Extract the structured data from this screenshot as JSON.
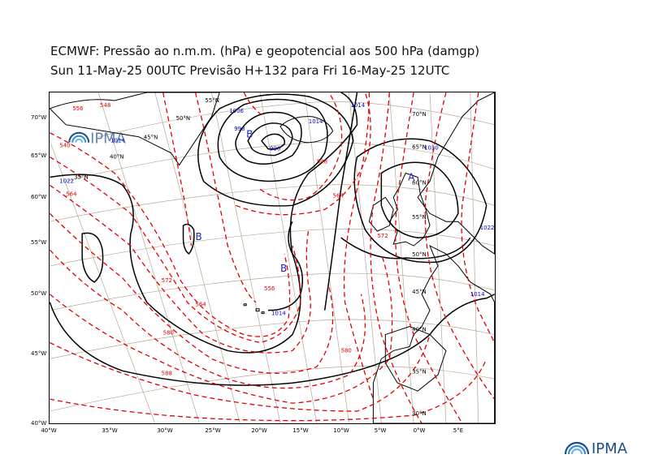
{
  "title": {
    "line1": "ECMWF:  Pressão ao n.m.m. (hPa) e geopotencial aos 500 hPa (damgp)",
    "line2": "Sun 11-May-25 00UTC Previsão H+132 para Fri 16-May-25 12UTC"
  },
  "logo_text": "IPMA",
  "axes": {
    "lon_labels": [
      "40°W",
      "35°W",
      "30°W",
      "25°W",
      "20°W",
      "15°W",
      "10°W",
      "5°W",
      "0°W",
      "5°E"
    ],
    "lat_labels": [
      "70°W",
      "65°W",
      "60°W",
      "55°W",
      "50°W",
      "45°W",
      "40°W"
    ]
  },
  "grid_labels": [
    "55°N",
    "50°N",
    "45°N",
    "40°N",
    "35°N",
    "70°N",
    "65°N",
    "60°N",
    "55°N",
    "50°N",
    "45°N",
    "40°N",
    "35°N",
    "30°N"
  ],
  "pressure_centers": [
    "B",
    "B",
    "B",
    "A"
  ],
  "isobar_labels": [
    "1014",
    "1022",
    "1006",
    "998",
    "990",
    "1014",
    "1014",
    "1030",
    "1014",
    "1022",
    "1014"
  ],
  "geopotential_labels": [
    "556",
    "548",
    "540",
    "564",
    "572",
    "564",
    "556",
    "580",
    "588",
    "580",
    "572",
    "564",
    "548"
  ],
  "colors": {
    "isobar": "#000000",
    "geopotential": "#e00000",
    "isobar_label": "#0000cc",
    "center_label": "#2222cc",
    "graticule": "#b8a890",
    "logo": "#1a4f8c"
  }
}
